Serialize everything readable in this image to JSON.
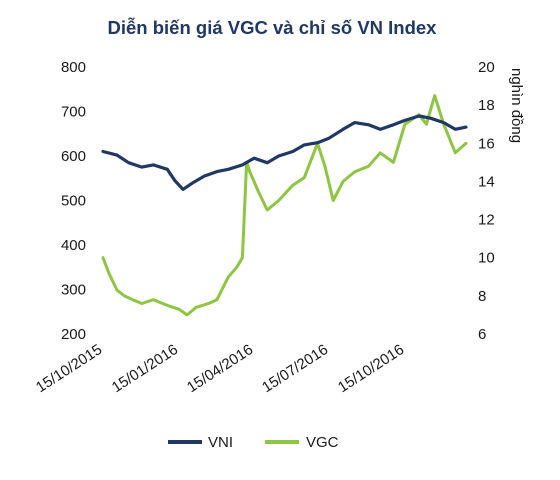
{
  "chart_data": {
    "type": "line",
    "title": "Diễn biến giá VGC và chỉ số VN Index",
    "y2label": "nghìn đồng",
    "ylim": [
      200,
      800
    ],
    "y2lim": [
      6,
      20
    ],
    "yticks": [
      "800",
      "700",
      "600",
      "500",
      "400",
      "300",
      "200"
    ],
    "y2ticks": [
      "20",
      "18",
      "16",
      "14",
      "12",
      "10",
      "8",
      "6"
    ],
    "xticks": [
      "15/10/2015",
      "15/01/2016",
      "15/04/2016",
      "15/07/2016",
      "15/10/2016"
    ],
    "grid": false,
    "legend_position": "bottom",
    "series": [
      {
        "name": "VNI",
        "axis": "left",
        "color": "#1f3864",
        "x": [
          "15/10/2015",
          "01/11/2015",
          "15/11/2015",
          "01/12/2015",
          "15/12/2015",
          "01/01/2016",
          "10/01/2016",
          "20/01/2016",
          "01/02/2016",
          "15/02/2016",
          "01/03/2016",
          "15/03/2016",
          "01/04/2016",
          "15/04/2016",
          "01/05/2016",
          "15/05/2016",
          "01/06/2016",
          "15/06/2016",
          "01/07/2016",
          "15/07/2016",
          "01/08/2016",
          "15/08/2016",
          "01/09/2016",
          "15/09/2016",
          "01/10/2016",
          "15/10/2016",
          "01/11/2016",
          "15/11/2016",
          "01/12/2016",
          "15/12/2016",
          "28/12/2016"
        ],
        "values": [
          610,
          602,
          585,
          575,
          580,
          570,
          545,
          525,
          540,
          555,
          565,
          570,
          580,
          595,
          585,
          600,
          610,
          625,
          630,
          640,
          660,
          675,
          670,
          660,
          670,
          680,
          690,
          685,
          675,
          660,
          665
        ]
      },
      {
        "name": "VGC",
        "axis": "right",
        "color": "#8dc63f",
        "x": [
          "15/10/2015",
          "22/10/2015",
          "01/11/2015",
          "10/11/2015",
          "20/11/2015",
          "01/12/2015",
          "15/12/2015",
          "01/01/2016",
          "15/01/2016",
          "25/01/2016",
          "05/02/2016",
          "20/02/2016",
          "01/03/2016",
          "15/03/2016",
          "25/03/2016",
          "01/04/2016",
          "06/04/2016",
          "10/04/2016",
          "15/04/2016",
          "20/04/2016",
          "01/05/2016",
          "15/05/2016",
          "01/06/2016",
          "15/06/2016",
          "01/07/2016",
          "10/07/2016",
          "20/07/2016",
          "01/08/2016",
          "15/08/2016",
          "01/09/2016",
          "15/09/2016",
          "01/10/2016",
          "15/10/2016",
          "01/11/2016",
          "10/11/2016",
          "20/11/2016",
          "01/12/2016",
          "15/12/2016",
          "28/12/2016"
        ],
        "values": [
          10.0,
          9.2,
          8.3,
          8.0,
          7.8,
          7.6,
          7.8,
          7.5,
          7.3,
          7.0,
          7.4,
          7.6,
          7.8,
          9.0,
          9.5,
          10.0,
          15.0,
          14.5,
          14.0,
          13.5,
          12.5,
          13.0,
          13.8,
          14.2,
          16.0,
          14.8,
          13.0,
          14.0,
          14.5,
          14.8,
          15.5,
          15.0,
          17.0,
          17.5,
          17.0,
          18.5,
          17.0,
          15.5,
          16.0
        ]
      }
    ]
  }
}
